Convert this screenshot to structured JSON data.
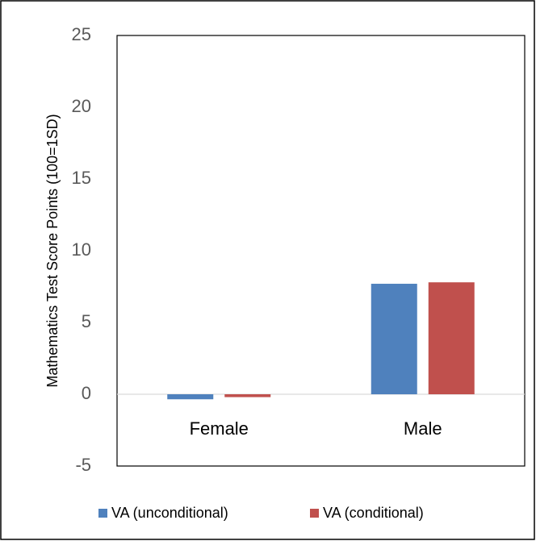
{
  "chart_data": {
    "type": "bar",
    "y_label": "Mathematics Test Score Points (100=1SD)",
    "categories": [
      "Female",
      "Male"
    ],
    "series": [
      {
        "name": "VA (unconditional)",
        "color": "#4f81bd",
        "values": [
          -0.35,
          7.7
        ]
      },
      {
        "name": "VA (conditional)",
        "color": "#c0504d",
        "values": [
          -0.2,
          7.8
        ]
      }
    ],
    "ylim": [
      -5,
      25
    ],
    "yticks": [
      -5,
      0,
      5,
      10,
      15,
      20,
      25
    ],
    "grid": false,
    "legend": "bottom"
  }
}
